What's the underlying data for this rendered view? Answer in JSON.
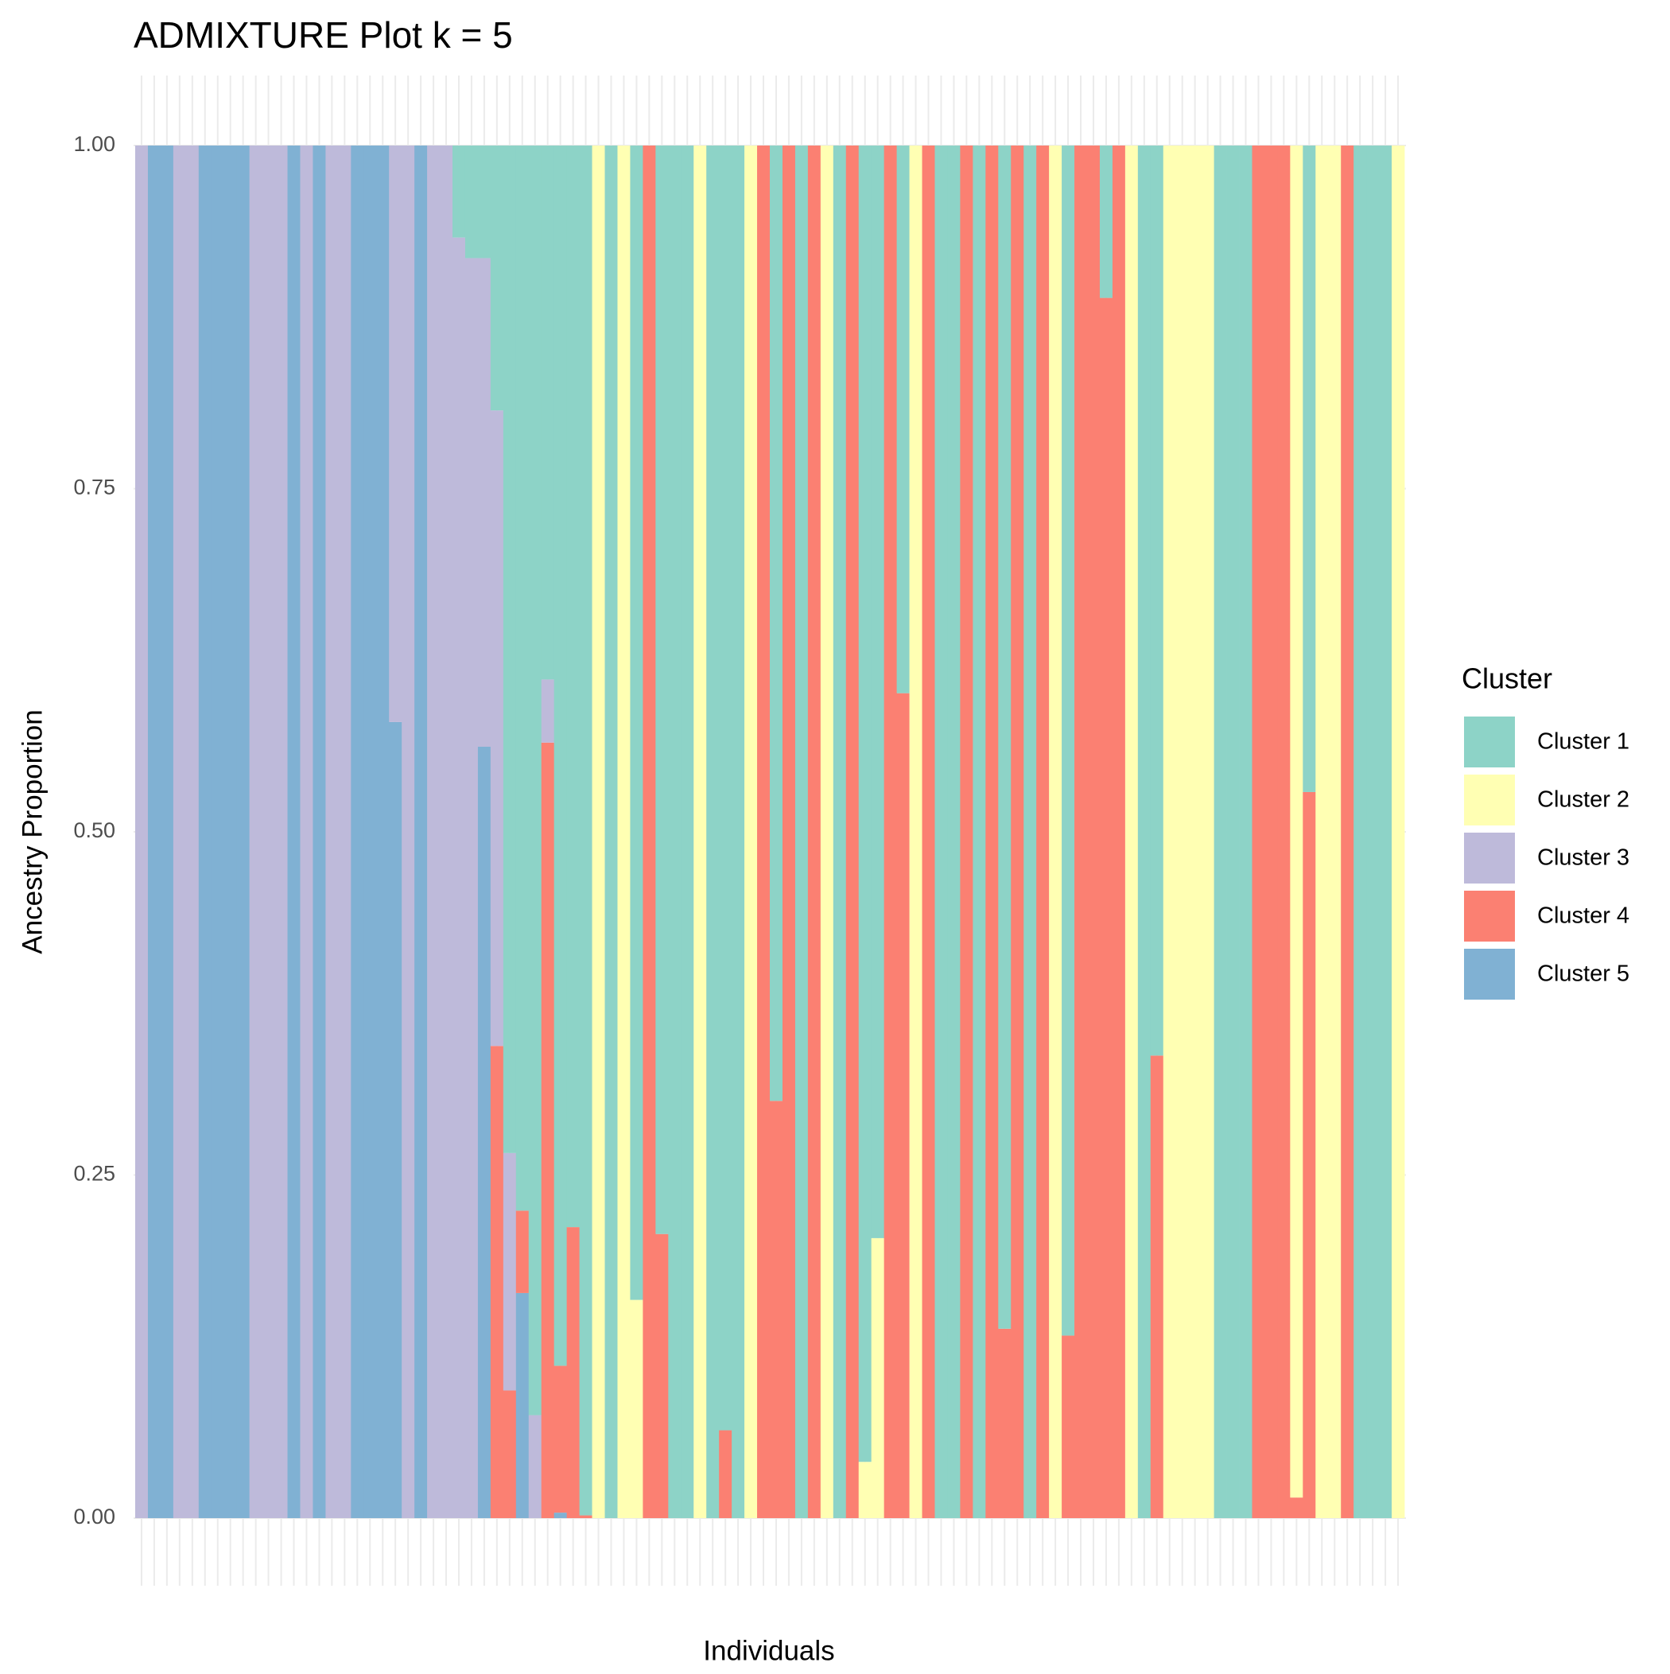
{
  "chart_data": {
    "type": "stacked_bar",
    "title": "ADMIXTURE Plot k = 5",
    "x_label": "Individuals",
    "y_label": "Ancestry Proportion",
    "legend_title": "Cluster",
    "legend_position": "right",
    "grid": true,
    "categories": [
      null,
      null,
      null,
      null,
      null,
      null,
      null,
      null,
      null,
      null,
      null,
      null,
      null,
      null,
      null,
      null,
      null,
      null,
      null,
      null,
      null,
      null,
      null,
      null,
      null,
      null,
      null,
      null,
      null,
      null,
      null,
      null,
      null,
      null,
      null,
      null,
      null,
      null,
      null,
      null,
      null,
      null,
      null,
      null,
      null,
      null,
      null,
      null,
      null,
      null,
      null,
      null,
      null,
      null,
      null,
      null,
      null,
      null,
      null,
      null,
      null,
      null,
      null,
      null,
      null,
      null,
      null,
      null,
      null,
      null,
      null,
      null,
      null,
      null,
      null,
      null,
      null,
      null,
      null,
      null,
      null,
      null,
      null,
      null,
      null,
      null,
      null,
      null,
      null,
      null,
      null,
      null,
      null,
      null,
      null,
      null,
      null,
      null,
      null,
      null
    ],
    "ylim": [
      0,
      1
    ],
    "yticks": [
      {
        "value": 0,
        "label": "0.00"
      },
      0.25,
      {
        "value": 0.5,
        "label": "0.50"
      },
      0.75,
      {
        "value": 1,
        "label": "1.00"
      }
    ],
    "series": [
      {
        "name": "Cluster 1",
        "color": "#8DD3C7",
        "values": [
          0,
          0,
          0,
          0,
          0,
          0,
          0,
          0,
          0,
          0,
          0,
          0,
          0,
          0,
          0,
          0,
          0,
          0,
          0,
          0,
          0,
          0,
          0,
          0,
          0,
          0.067,
          0.082,
          0.082,
          0.193,
          0.734,
          0.776,
          0.925,
          0.389,
          0.889,
          0.788,
          0.998,
          0,
          1,
          0,
          0.841,
          0,
          0.793,
          1,
          1,
          0,
          1,
          0.936,
          1,
          0,
          0,
          0.696,
          0,
          1,
          0,
          0,
          1,
          0,
          0.959,
          0.796,
          0,
          0.399,
          0,
          0,
          1,
          1,
          0,
          1,
          0,
          0.862,
          0,
          1,
          0,
          0,
          0.867,
          0,
          0,
          0.111,
          0,
          0,
          1,
          0.663,
          0,
          0,
          0,
          0,
          1,
          1,
          1,
          0,
          0,
          0,
          0,
          0.471,
          0,
          0,
          0,
          1,
          1,
          1,
          0
        ]
      },
      {
        "name": "Cluster 2",
        "color": "#FFFFB3",
        "values": [
          0,
          0,
          0,
          0,
          0,
          0,
          0,
          0,
          0,
          0,
          0,
          0,
          0,
          0,
          0,
          0,
          0,
          0,
          0,
          0,
          0,
          0,
          0,
          0,
          0,
          0,
          0,
          0,
          0,
          0,
          0,
          0,
          0,
          0,
          0,
          0,
          1,
          0,
          1,
          0.159,
          0,
          0,
          0,
          0,
          1,
          0,
          0,
          0,
          1,
          0,
          0,
          0,
          0,
          0,
          1,
          0,
          0,
          0.041,
          0.204,
          0,
          0,
          1,
          0,
          0,
          0,
          0,
          0,
          0,
          0,
          0,
          0,
          0,
          1,
          0,
          0,
          0,
          0,
          0,
          1,
          0,
          0,
          1,
          1,
          1,
          1,
          0,
          0,
          0,
          0,
          0,
          0,
          0.985,
          0,
          1,
          1,
          0,
          0,
          0,
          0,
          1
        ]
      },
      {
        "name": "Cluster 3",
        "color": "#BEBADA",
        "values": [
          1,
          0,
          0,
          1,
          1,
          0,
          0,
          0,
          0,
          1,
          1,
          1,
          0,
          1,
          0,
          1,
          1,
          0,
          0,
          0,
          0.42,
          1,
          0,
          1,
          1,
          0.933,
          0.918,
          0.356,
          0.463,
          0.173,
          0,
          0.075,
          0.046,
          0,
          0,
          0,
          0,
          0,
          0,
          0,
          0,
          0,
          0,
          0,
          0,
          0,
          0,
          0,
          0,
          0,
          0,
          0,
          0,
          0,
          0,
          0,
          0,
          0,
          0,
          0,
          0,
          0,
          0,
          0,
          0,
          0,
          0,
          0,
          0,
          0,
          0,
          0,
          0,
          0,
          0,
          0,
          0,
          0,
          0,
          0,
          0,
          0,
          0,
          0,
          0,
          0,
          0,
          0,
          0,
          0,
          0,
          0,
          0,
          0,
          0,
          0,
          0,
          0,
          0,
          0
        ]
      },
      {
        "name": "Cluster 4",
        "color": "#FB8072",
        "values": [
          0,
          0,
          0,
          0,
          0,
          0,
          0,
          0,
          0,
          0,
          0,
          0,
          0,
          0,
          0,
          0,
          0,
          0,
          0,
          0,
          0,
          0,
          0,
          0,
          0,
          0,
          0,
          0,
          0.344,
          0.093,
          0.06,
          0,
          0.565,
          0.107,
          0.212,
          0.002,
          0,
          0,
          0,
          0,
          1,
          0.207,
          0,
          0,
          0,
          0,
          0.064,
          0,
          0,
          1,
          0.304,
          1,
          0,
          1,
          0,
          0,
          1,
          0,
          0,
          1,
          0.601,
          0,
          1,
          0,
          0,
          1,
          0,
          1,
          0.138,
          1,
          0,
          1,
          0,
          0.133,
          1,
          1,
          0.889,
          1,
          0,
          0,
          0.337,
          0,
          0,
          0,
          0,
          0,
          0,
          0,
          1,
          1,
          1,
          0.015,
          0.529,
          0,
          0,
          1,
          0,
          0,
          0,
          0
        ]
      },
      {
        "name": "Cluster 5",
        "color": "#80B1D3",
        "values": [
          0,
          1,
          1,
          0,
          0,
          1,
          1,
          1,
          1,
          0,
          0,
          0,
          1,
          0,
          1,
          0,
          0,
          1,
          1,
          1,
          0.58,
          0,
          1,
          0,
          0,
          0,
          0,
          0.562,
          0,
          0,
          0.164,
          0,
          0,
          0.004,
          0,
          0,
          0,
          0,
          0,
          0,
          0,
          0,
          0,
          0,
          0,
          0,
          0,
          0,
          0,
          0,
          0,
          0,
          0,
          0,
          0,
          0,
          0,
          0,
          0,
          0,
          0,
          0,
          0,
          0,
          0,
          0,
          0,
          0,
          0,
          0,
          0,
          0,
          0,
          0,
          0,
          0,
          0,
          0,
          0,
          0,
          0,
          0,
          0,
          0,
          0,
          0,
          0,
          0,
          0,
          0,
          0,
          0,
          0,
          0,
          0,
          0,
          0,
          0,
          0,
          0
        ]
      }
    ]
  }
}
